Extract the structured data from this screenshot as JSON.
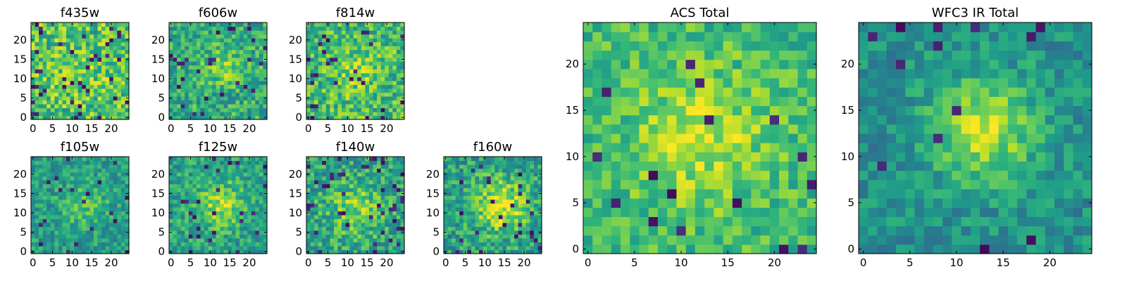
{
  "chart_data": [
    {
      "type": "heatmap",
      "title": "f435w",
      "colormap": "viridis",
      "grid": false,
      "xlim": [
        0,
        24
      ],
      "ylim": [
        0,
        24
      ],
      "xticks": [
        "0",
        "5",
        "10",
        "15",
        "20"
      ],
      "yticks": [
        "0",
        "5",
        "10",
        "15",
        "20"
      ]
    },
    {
      "type": "heatmap",
      "title": "f606w",
      "colormap": "viridis",
      "grid": false,
      "xlim": [
        0,
        24
      ],
      "ylim": [
        0,
        24
      ],
      "xticks": [
        "0",
        "5",
        "10",
        "15",
        "20"
      ],
      "yticks": [
        "0",
        "5",
        "10",
        "15",
        "20"
      ]
    },
    {
      "type": "heatmap",
      "title": "f814w",
      "colormap": "viridis",
      "grid": false,
      "xlim": [
        0,
        24
      ],
      "ylim": [
        0,
        24
      ],
      "xticks": [
        "0",
        "5",
        "10",
        "15",
        "20"
      ],
      "yticks": [
        "0",
        "5",
        "10",
        "15",
        "20"
      ]
    },
    {
      "type": "heatmap",
      "title": "f105w",
      "colormap": "viridis",
      "grid": false,
      "xlim": [
        0,
        24
      ],
      "ylim": [
        0,
        24
      ],
      "xticks": [
        "0",
        "5",
        "10",
        "15",
        "20"
      ],
      "yticks": [
        "0",
        "5",
        "10",
        "15",
        "20"
      ]
    },
    {
      "type": "heatmap",
      "title": "f125w",
      "colormap": "viridis",
      "grid": false,
      "xlim": [
        0,
        24
      ],
      "ylim": [
        0,
        24
      ],
      "xticks": [
        "0",
        "5",
        "10",
        "15",
        "20"
      ],
      "yticks": [
        "0",
        "5",
        "10",
        "15",
        "20"
      ]
    },
    {
      "type": "heatmap",
      "title": "f140w",
      "colormap": "viridis",
      "grid": false,
      "xlim": [
        0,
        24
      ],
      "ylim": [
        0,
        24
      ],
      "xticks": [
        "0",
        "5",
        "10",
        "15",
        "20"
      ],
      "yticks": [
        "0",
        "5",
        "10",
        "15",
        "20"
      ]
    },
    {
      "type": "heatmap",
      "title": "f160w",
      "colormap": "viridis",
      "grid": false,
      "xlim": [
        0,
        24
      ],
      "ylim": [
        0,
        24
      ],
      "xticks": [
        "0",
        "5",
        "10",
        "15",
        "20"
      ],
      "yticks": [
        "0",
        "5",
        "10",
        "15",
        "20"
      ]
    },
    {
      "type": "heatmap",
      "title": "ACS Total",
      "colormap": "viridis",
      "grid": false,
      "xlim": [
        0,
        24
      ],
      "ylim": [
        0,
        24
      ],
      "xticks": [
        "0",
        "5",
        "10",
        "15",
        "20"
      ],
      "yticks": [
        "0",
        "5",
        "10",
        "15",
        "20"
      ]
    },
    {
      "type": "heatmap",
      "title": "WFC3 IR Total",
      "colormap": "viridis",
      "grid": false,
      "xlim": [
        0,
        24
      ],
      "ylim": [
        0,
        24
      ],
      "xticks": [
        "0",
        "5",
        "10",
        "15",
        "20"
      ],
      "yticks": [
        "0",
        "5",
        "10",
        "15",
        "20"
      ]
    }
  ]
}
